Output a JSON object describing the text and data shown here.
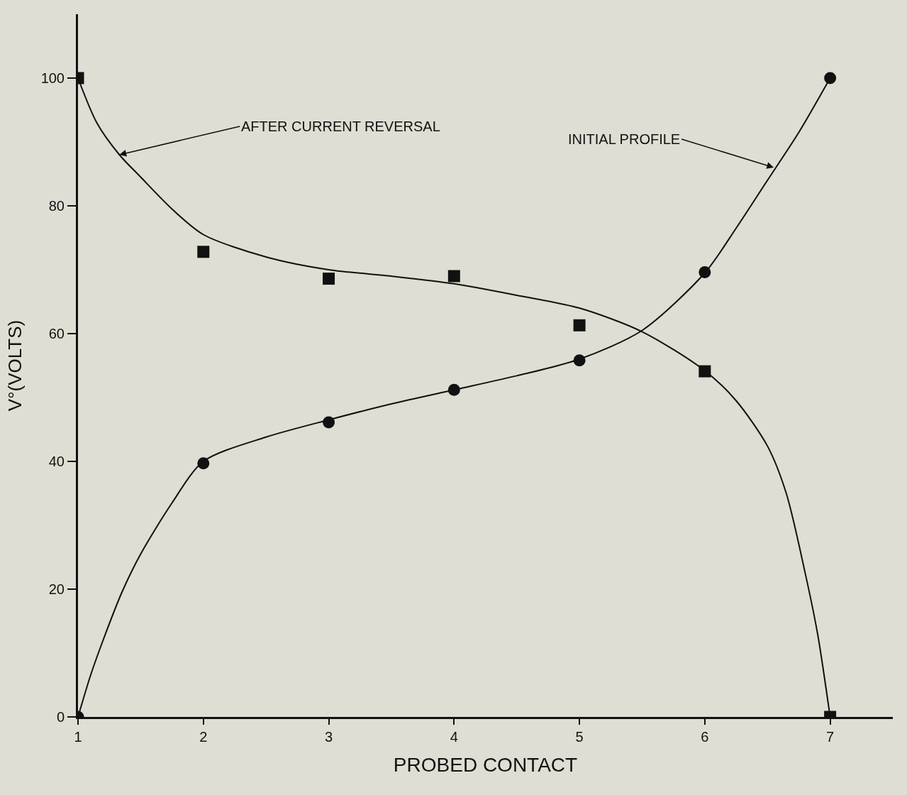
{
  "chart_data": {
    "type": "scatter",
    "xlabel": "PROBED CONTACT",
    "ylabel": "V°(VOLTS)",
    "xlim": [
      1,
      7.5
    ],
    "xticks": [
      1,
      2,
      3,
      4,
      5,
      6,
      7
    ],
    "ylim": [
      0,
      110
    ],
    "yticks": [
      0,
      20,
      40,
      60,
      80,
      100
    ],
    "grid": false,
    "legend": false,
    "series": [
      {
        "marker": "square",
        "color": "#111111",
        "x": [
          1,
          2,
          3,
          4,
          5,
          6,
          7
        ],
        "values": [
          100,
          72.8,
          68.6,
          69,
          61.3,
          54.1,
          0
        ]
      },
      {
        "marker": "circle",
        "color": "#111111",
        "x": [
          1,
          2,
          3,
          4,
          5,
          6,
          7
        ],
        "values": [
          0,
          39.7,
          46.1,
          51.2,
          55.8,
          69.6,
          100
        ]
      },
      {
        "type": "line",
        "marker": "none",
        "line_style": "solid",
        "color": "#111111",
        "x": [
          1,
          1.15,
          1.33,
          1.5,
          1.75,
          2,
          2.5,
          3,
          3.5,
          4,
          4.5,
          5,
          5.5,
          6,
          6.25,
          6.5,
          6.65,
          6.8,
          6.9,
          7
        ],
        "values": [
          100,
          93,
          88,
          84.5,
          79.5,
          75.5,
          72,
          70,
          69,
          67.8,
          66,
          64,
          60.3,
          54.2,
          49.5,
          42.4,
          35,
          22.6,
          13,
          0
        ]
      },
      {
        "type": "line",
        "marker": "none",
        "line_style": "solid",
        "color": "#111111",
        "x": [
          1,
          1.1,
          1.2,
          1.35,
          1.5,
          1.75,
          2,
          2.5,
          3,
          3.5,
          4,
          4.5,
          5,
          5.5,
          6,
          6.25,
          6.5,
          6.75,
          7
        ],
        "values": [
          0,
          6.5,
          12,
          19.5,
          25.5,
          33.5,
          40,
          43.8,
          46.5,
          49,
          51.2,
          53.4,
          56,
          60.5,
          69.5,
          76.5,
          84,
          91.5,
          100
        ]
      }
    ],
    "annotations": [
      {
        "text": "AFTER CURRENT REVERSAL",
        "x": 1.33,
        "y": 88
      },
      {
        "text": "INITIAL PROFILE",
        "x": 6.55,
        "y": 86
      }
    ]
  }
}
